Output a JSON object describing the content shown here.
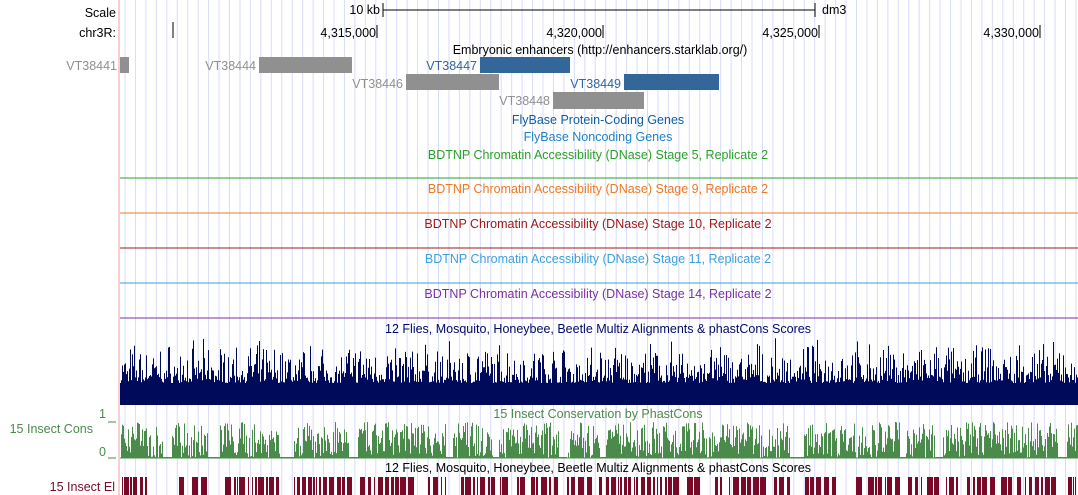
{
  "ruler": {
    "scale_label": "Scale",
    "chrom_label": "chr3R:",
    "scale_bar_label": "10 kb",
    "assembly": "dm3",
    "ticks": [
      "4,315,000",
      "4,320,000",
      "4,325,000",
      "4,330,000"
    ]
  },
  "enhancers": {
    "title": "Embryonic enhancers (http://enhancers.starklab.org/)",
    "items": [
      {
        "name": "VT38441",
        "color": "#909090"
      },
      {
        "name": "VT38444",
        "color": "#909090"
      },
      {
        "name": "VT38447",
        "color": "#336699"
      },
      {
        "name": "VT38446",
        "color": "#909090"
      },
      {
        "name": "VT38449",
        "color": "#336699"
      },
      {
        "name": "VT38448",
        "color": "#909090"
      }
    ]
  },
  "tracks": [
    {
      "title": "FlyBase Protein-Coding Genes",
      "color": "#0c5ca8"
    },
    {
      "title": "FlyBase Noncoding Genes",
      "color": "#1e82c8"
    },
    {
      "title": "BDTNP Chromatin Accessibility (DNase) Stage 5, Replicate 2",
      "color": "#2aa02a"
    },
    {
      "title": "BDTNP Chromatin Accessibility (DNase) Stage 9, Replicate 2",
      "color": "#f07820"
    },
    {
      "title": "BDTNP Chromatin Accessibility (DNase) Stage 10, Replicate 2",
      "color": "#a01818"
    },
    {
      "title": "BDTNP Chromatin Accessibility (DNase) Stage 11, Replicate 2",
      "color": "#3ca0dc"
    },
    {
      "title": "BDTNP Chromatin Accessibility (DNase) Stage 14, Replicate 2",
      "color": "#7832a0"
    },
    {
      "title": "12 Flies, Mosquito, Honeybee, Beetle Multiz Alignments & phastCons Scores",
      "color": "#000a6a"
    },
    {
      "title": "15 Insect Conservation by PhastCons",
      "color": "#4a8a4a"
    },
    {
      "title": "12 Flies, Mosquito, Honeybee, Beetle Multiz Alignments & phastCons Scores",
      "color": "#000000"
    }
  ],
  "side_labels": {
    "cons_label": "15 Insect Cons",
    "cons_max": "1",
    "cons_min": "0",
    "elements_label": "15 Insect El"
  },
  "colors": {
    "multiz": "#000a5a",
    "cons": "#4a8a4a",
    "elements": "#780a28",
    "guide": "#d8dcf8"
  }
}
